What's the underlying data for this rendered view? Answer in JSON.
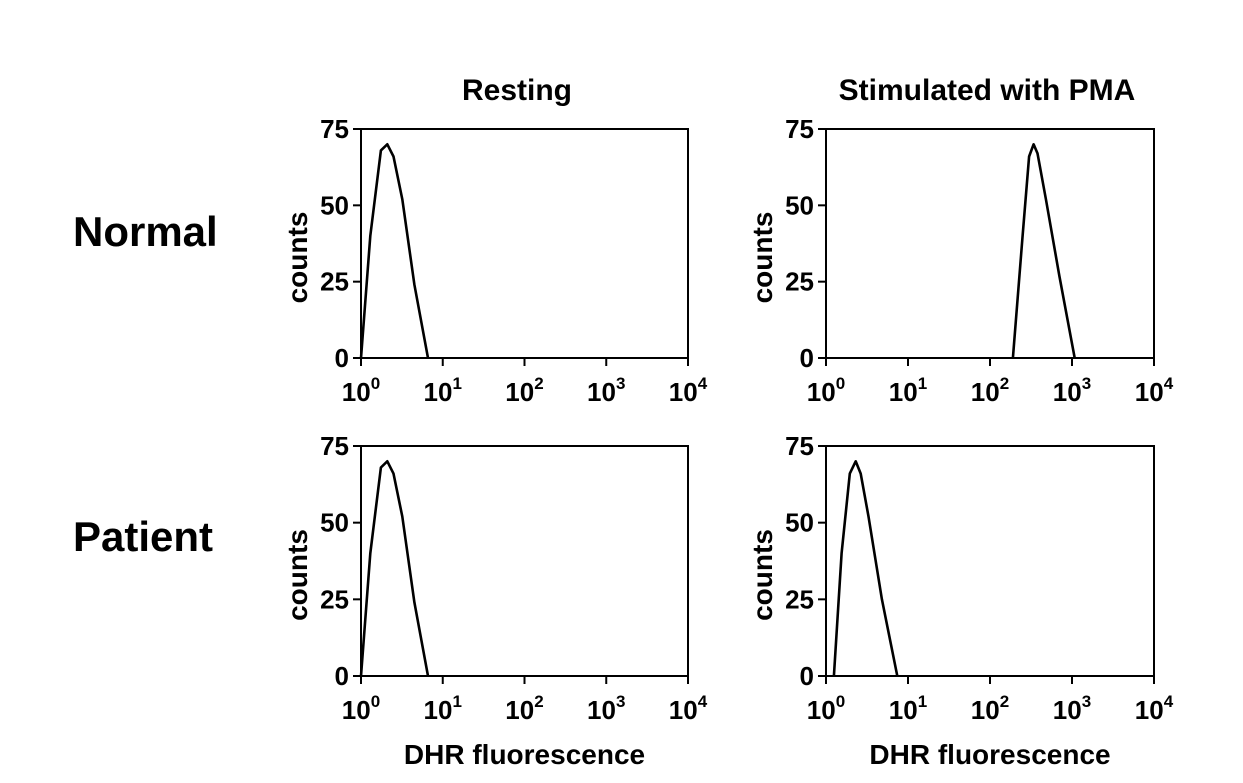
{
  "col_titles": [
    "Resting",
    "Stimulated with PMA"
  ],
  "row_labels": [
    "Normal",
    "Patient"
  ],
  "chart_data": [
    {
      "type": "line",
      "row": "Normal",
      "column": "Resting",
      "xlabel": "",
      "ylabel": "counts",
      "x_scale": "log",
      "xlim": [
        1,
        10000
      ],
      "ylim": [
        0,
        75
      ],
      "y_ticks": [
        0,
        25,
        50,
        75
      ],
      "x_tick_labels": [
        {
          "base": "10",
          "exp": "0"
        },
        {
          "base": "10",
          "exp": "1"
        },
        {
          "base": "10",
          "exp": "2"
        },
        {
          "base": "10",
          "exp": "3"
        },
        {
          "base": "10",
          "exp": "4"
        }
      ],
      "grid": false,
      "series": [
        {
          "x": [
            1.0,
            1.3,
            1.75,
            2.1,
            2.5,
            3.2,
            4.5,
            6.6
          ],
          "y": [
            0,
            40,
            68,
            70,
            66,
            52,
            24,
            0
          ]
        }
      ]
    },
    {
      "type": "line",
      "row": "Normal",
      "column": "Stimulated with PMA",
      "xlabel": "",
      "ylabel": "counts",
      "x_scale": "log",
      "xlim": [
        1,
        10000
      ],
      "ylim": [
        0,
        75
      ],
      "y_ticks": [
        0,
        25,
        50,
        75
      ],
      "x_tick_labels": [
        {
          "base": "10",
          "exp": "0"
        },
        {
          "base": "10",
          "exp": "1"
        },
        {
          "base": "10",
          "exp": "2"
        },
        {
          "base": "10",
          "exp": "3"
        },
        {
          "base": "10",
          "exp": "4"
        }
      ],
      "grid": false,
      "series": [
        {
          "x": [
            190,
            250,
            300,
            340,
            380,
            480,
            700,
            1080
          ],
          "y": [
            0,
            40,
            66,
            70,
            67,
            52,
            27,
            0
          ]
        }
      ]
    },
    {
      "type": "line",
      "row": "Patient",
      "column": "Resting",
      "xlabel": "DHR fluorescence",
      "ylabel": "counts",
      "x_scale": "log",
      "xlim": [
        1,
        10000
      ],
      "ylim": [
        0,
        75
      ],
      "y_ticks": [
        0,
        25,
        50,
        75
      ],
      "x_tick_labels": [
        {
          "base": "10",
          "exp": "0"
        },
        {
          "base": "10",
          "exp": "1"
        },
        {
          "base": "10",
          "exp": "2"
        },
        {
          "base": "10",
          "exp": "3"
        },
        {
          "base": "10",
          "exp": "4"
        }
      ],
      "grid": false,
      "series": [
        {
          "x": [
            1.0,
            1.3,
            1.75,
            2.1,
            2.5,
            3.2,
            4.5,
            6.6
          ],
          "y": [
            0,
            40,
            68,
            70,
            66,
            52,
            24,
            0
          ]
        }
      ]
    },
    {
      "type": "line",
      "row": "Patient",
      "column": "Stimulated with PMA",
      "xlabel": "DHR fluorescence",
      "ylabel": "counts",
      "x_scale": "log",
      "xlim": [
        1,
        10000
      ],
      "ylim": [
        0,
        75
      ],
      "y_ticks": [
        0,
        25,
        50,
        75
      ],
      "x_tick_labels": [
        {
          "base": "10",
          "exp": "0"
        },
        {
          "base": "10",
          "exp": "1"
        },
        {
          "base": "10",
          "exp": "2"
        },
        {
          "base": "10",
          "exp": "3"
        },
        {
          "base": "10",
          "exp": "4"
        }
      ],
      "grid": false,
      "series": [
        {
          "x": [
            1.25,
            1.55,
            1.95,
            2.3,
            2.65,
            3.3,
            4.8,
            7.4
          ],
          "y": [
            0,
            40,
            66,
            70,
            66,
            52,
            25,
            0
          ]
        }
      ]
    }
  ]
}
